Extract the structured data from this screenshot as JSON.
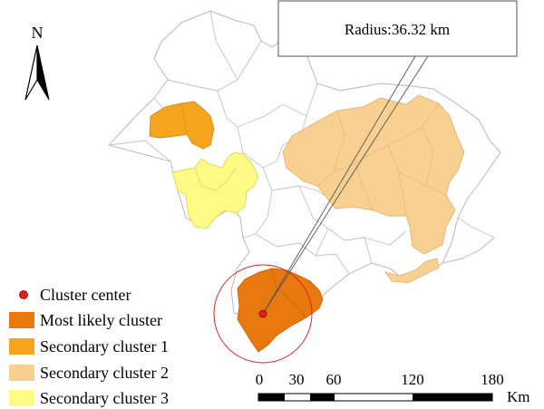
{
  "north_arrow": {
    "label": "N",
    "icon": "north-arrow-icon"
  },
  "callout": {
    "text": "Radius:36.32 km"
  },
  "legend": {
    "items": [
      {
        "key": "center",
        "label": "Cluster center",
        "color": "#e02020",
        "symbol": "dot"
      },
      {
        "key": "most_likely",
        "label": "Most likely cluster",
        "color": "#e8790f",
        "symbol": "swatch"
      },
      {
        "key": "secondary_1",
        "label": "Secondary cluster 1",
        "color": "#f6a51f",
        "symbol": "swatch"
      },
      {
        "key": "secondary_2",
        "label": "Secondary cluster 2",
        "color": "#f8d092",
        "symbol": "swatch"
      },
      {
        "key": "secondary_3",
        "label": "Secondary cluster 3",
        "color": "#fdfb83",
        "symbol": "swatch"
      }
    ]
  },
  "scale_bar": {
    "ticks": [
      "0",
      "30",
      "60",
      "120",
      "180"
    ],
    "unit": "Km"
  },
  "colors": {
    "outline": "#b8b8b8",
    "circle": "#e02020",
    "base_fill": "#ffffff"
  }
}
